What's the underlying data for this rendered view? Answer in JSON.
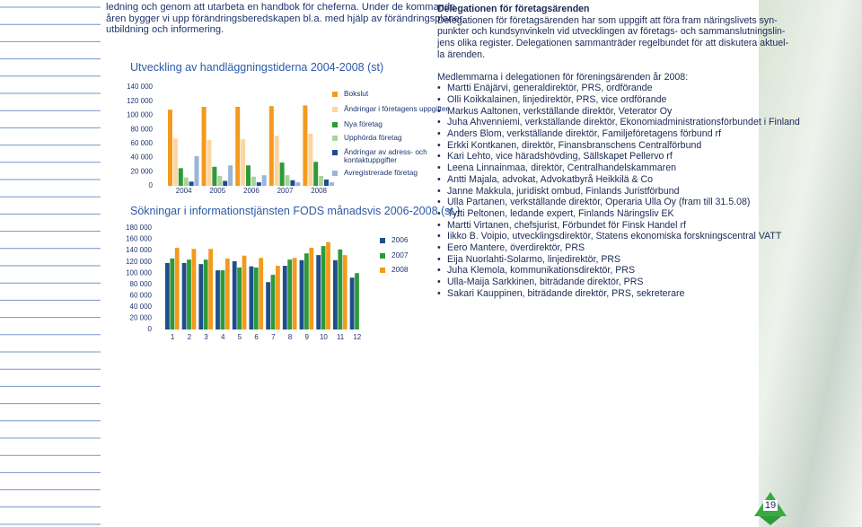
{
  "intro_lines": [
    "ledning och genom att utarbeta en handbok för cheferna. Under de kommande",
    "åren bygger vi upp förändringsberedskapen bl.a. med hjälp av förändringsplaner,",
    "utbildning och informering."
  ],
  "chart_data": [
    {
      "type": "bar",
      "title": "Utveckling av handläggningstiderna 2004-2008 (st)",
      "categories": [
        "2004",
        "2005",
        "2006",
        "2007",
        "2008"
      ],
      "series": [
        {
          "name": "Bokslut",
          "color": "#f39a1e",
          "values": [
            108000,
            112000,
            112000,
            113000,
            114000
          ]
        },
        {
          "name": "Ändringar i företagens uppgifter",
          "color": "#fcd6a0",
          "values": [
            67000,
            65000,
            66000,
            71000,
            74000
          ]
        },
        {
          "name": "Nya företag",
          "color": "#2e9a3a",
          "values": [
            25000,
            27000,
            29000,
            33000,
            34000
          ]
        },
        {
          "name": "Upphörda företag",
          "color": "#a9d49b",
          "values": [
            12000,
            14000,
            13000,
            15000,
            14000
          ]
        },
        {
          "name": "Ändringar av adress- och kontaktuppgifter",
          "color": "#1f4e8c",
          "values": [
            6000,
            7000,
            5000,
            8000,
            9000
          ]
        },
        {
          "name": "Avregistrerade företag",
          "color": "#9bb4d8",
          "values": [
            42000,
            29000,
            15000,
            5000,
            5000
          ]
        }
      ],
      "ylim": [
        0,
        140000
      ],
      "yticks": [
        0,
        {
          "value": 20000,
          "label": "20 000"
        },
        {
          "value": 40000,
          "label": "40 000"
        },
        {
          "value": 60000,
          "label": "60 000"
        },
        {
          "value": 80000,
          "label": "80 000"
        },
        {
          "value": 100000,
          "label": "100 000"
        },
        {
          "value": 120000,
          "label": "120 000"
        },
        {
          "value": 140000,
          "label": "140 000"
        }
      ]
    },
    {
      "type": "bar",
      "title": "Sökningar i informationstjänsten FODS månadsvis 2006-2008 (st.)",
      "categories": [
        "1",
        "2",
        "3",
        "4",
        "5",
        "6",
        "7",
        "8",
        "9",
        "10",
        "11",
        "12"
      ],
      "series": [
        {
          "name": "2006",
          "color": "#1f4e8c",
          "values": [
            118000,
            118000,
            116000,
            105000,
            121000,
            112000,
            84000,
            113000,
            123000,
            132000,
            123000,
            92000
          ]
        },
        {
          "name": "2007",
          "color": "#2e9a3a",
          "values": [
            126000,
            124000,
            124000,
            105000,
            110000,
            110000,
            97000,
            124000,
            135000,
            148000,
            142000,
            100000
          ]
        },
        {
          "name": "2008",
          "color": "#f39a1e",
          "values": [
            145000,
            143000,
            143000,
            126000,
            131000,
            127000,
            113000,
            127000,
            145000,
            155000,
            132000,
            null
          ]
        }
      ],
      "ylim": [
        0,
        180000
      ],
      "yticks": [
        0,
        {
          "value": 20000,
          "label": "20 000"
        },
        {
          "value": 40000,
          "label": "40 000"
        },
        {
          "value": 60000,
          "label": "60 000"
        },
        {
          "value": 80000,
          "label": "80 000"
        },
        {
          "value": 100000,
          "label": "100 000"
        },
        {
          "value": 120000,
          "label": "120 000"
        },
        {
          "value": 140000,
          "label": "140 000"
        },
        {
          "value": 160000,
          "label": "160 000"
        },
        {
          "value": 180000,
          "label": "180 000"
        }
      ]
    }
  ],
  "sidebar": {
    "heading": "Delegationen för företagsärenden",
    "paragraph_lines": [
      "Delegationen för företagsärenden har som uppgift att föra fram näringslivets syn-",
      "punkter och kundsynvinkeln vid utvecklingen av företags- och sammanslutningslin-",
      "jens olika register. Delegationen sammanträder regelbundet för att diskutera aktuel-",
      "la ärenden."
    ],
    "members_intro": "Medlemmarna i delegationen för föreningsärenden år 2008:",
    "members": [
      "Martti Enäjärvi, generaldirektör, PRS, ordförande",
      "Olli Koikkalainen, linjedirektör, PRS, vice ordförande",
      "Markus Aaltonen, verkställande direktör, Veterator Oy",
      "Juha Ahvenniemi, verkställande direktör, Ekonomiadministrationsförbundet i Finland",
      "Anders Blom, verkställande direktör, Familjeföretagens förbund rf",
      "Erkki Kontkanen, direktör, Finansbranschens Centralförbund",
      "Kari Lehto, vice häradshövding, Sällskapet Pellervo rf",
      "Leena Linnainmaa, direktör, Centralhandelskammaren",
      "Antti Majala, advokat, Advokatbyrå Heikkilä & Co",
      "Janne Makkula, juridiskt ombud, Finlands Juristförbund",
      "Ulla Partanen, verkställande direktör, Operaria Ulla Oy (fram till 31.5.08)",
      "Tytti Peltonen, ledande expert, Finlands Näringsliv EK",
      "Martti Virtanen, chefsjurist, Förbundet för Finsk Handel rf",
      "Iikko B. Voipio, utvecklingsdirektör, Statens ekonomiska forskningscentral VATT",
      "Eero Mantere, överdirektör, PRS",
      "Eija Nuorlahti-Solarmo, linjedirektör, PRS",
      "Juha Klemola, kommunikationsdirektör, PRS",
      "Ulla-Maija Sarkkinen, biträdande direktör, PRS",
      "Sakari Kauppinen, biträdande direktör, PRS, sekreterare"
    ]
  },
  "page_number": "19"
}
